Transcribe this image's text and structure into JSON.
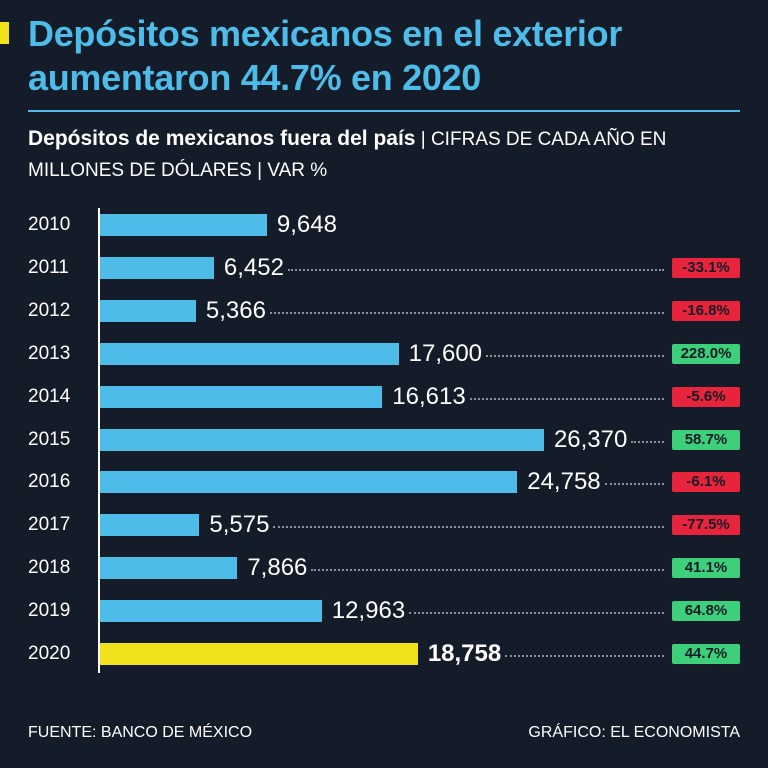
{
  "header": {
    "title_line1": "Depósitos mexicanos en el exterior",
    "title_line2": "aumentaron 44.7% en 2020",
    "subtitle_bold": "Depósitos de mexicanos fuera del país",
    "subtitle_rest": " | CIFRAS DE CADA AÑO EN MILLONES DE DÓLARES | VAR %"
  },
  "footer": {
    "source": "FUENTE: BANCO DE MÉXICO",
    "credit": "GRÁFICO: EL ECONOMISTA"
  },
  "colors": {
    "bar": "#4dbce9",
    "highlight": "#f2e21b",
    "positive": "#3ecf7a",
    "negative": "#e8243c"
  },
  "chart_data": {
    "type": "bar",
    "orientation": "horizontal",
    "title": "Depósitos de mexicanos fuera del país",
    "ylabel": "Millones de dólares",
    "categories": [
      "2010",
      "2011",
      "2012",
      "2013",
      "2014",
      "2015",
      "2016",
      "2017",
      "2018",
      "2019",
      "2020"
    ],
    "values": [
      9648,
      6452,
      5366,
      17600,
      16613,
      26370,
      24758,
      5575,
      7866,
      12963,
      18758
    ],
    "value_labels": [
      "9,648",
      "6,452",
      "5,366",
      "17,600",
      "16,613",
      "26,370",
      "24,758",
      "5,575",
      "7,866",
      "12,963",
      "18,758"
    ],
    "var_pct": [
      null,
      -33.1,
      -16.8,
      228.0,
      -5.6,
      58.7,
      -6.1,
      -77.5,
      41.1,
      64.8,
      44.7
    ],
    "var_labels": [
      "",
      "-33.1%",
      "-16.8%",
      "228.0%",
      "-5.6%",
      "58.7%",
      "-6.1%",
      "-77.5%",
      "41.1%",
      "64.8%",
      "44.7%"
    ],
    "highlight": "2020"
  }
}
